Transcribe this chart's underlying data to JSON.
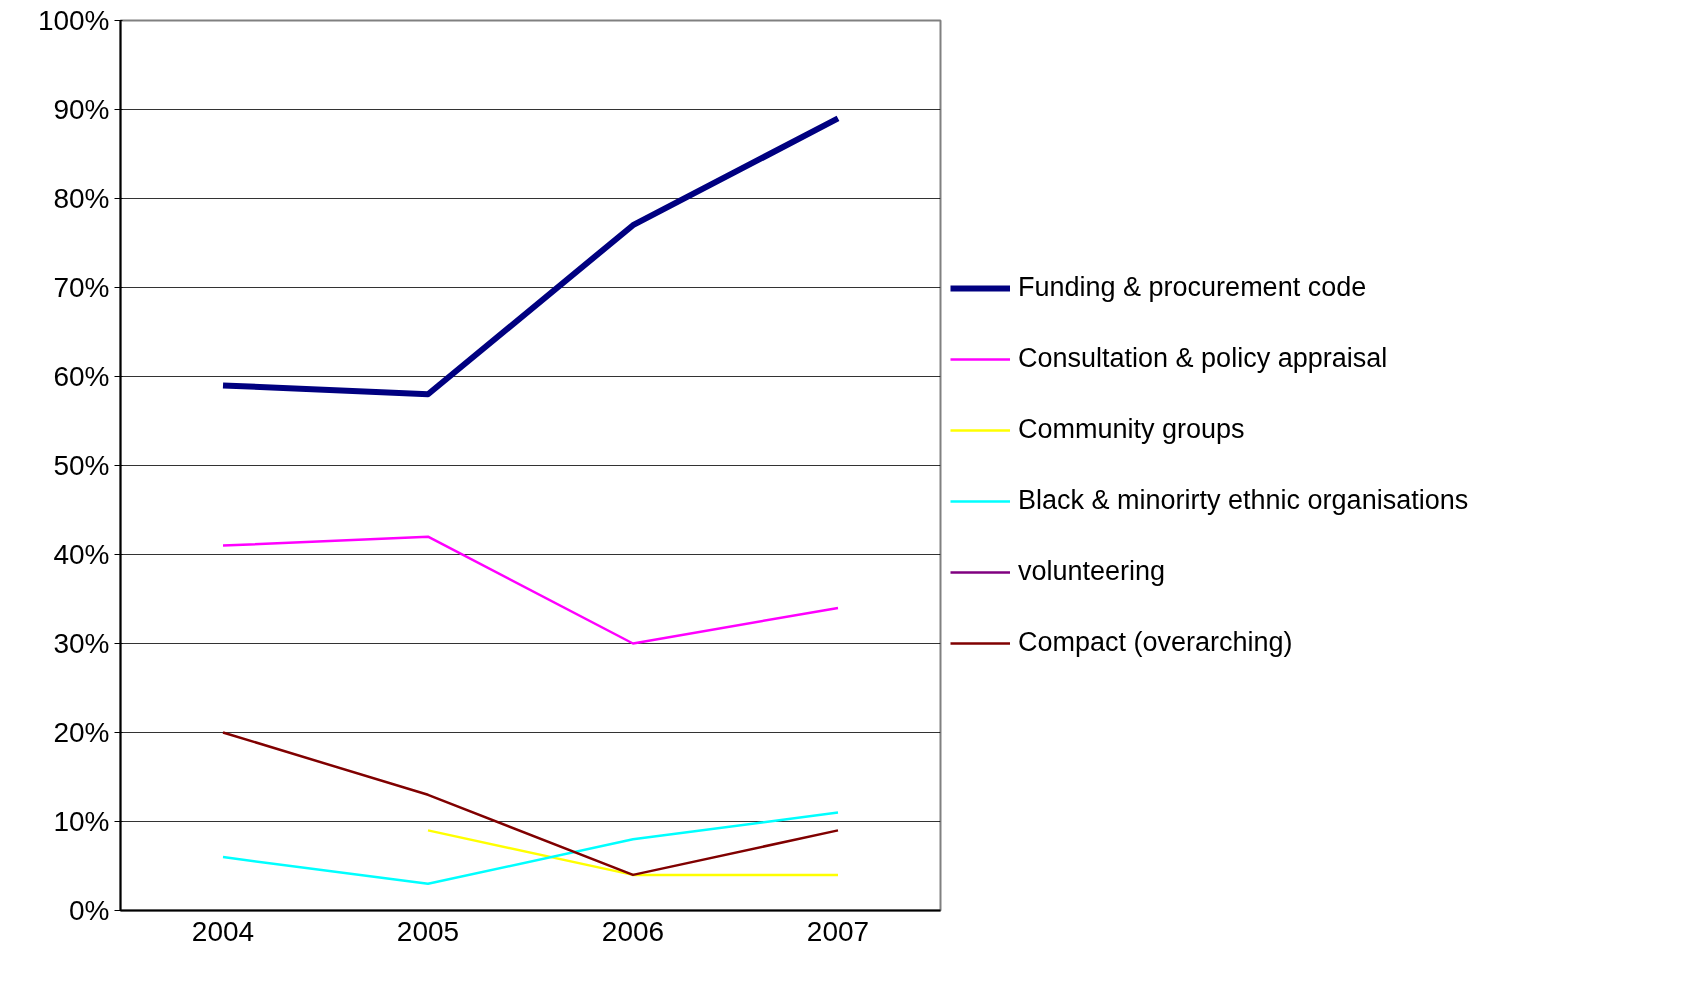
{
  "chart_data": {
    "type": "line",
    "categories": [
      "2004",
      "2005",
      "2006",
      "2007"
    ],
    "series": [
      {
        "name": "Funding & procurement code",
        "color": "#000080",
        "values": [
          59,
          58,
          77,
          89
        ]
      },
      {
        "name": "Consultation & policy appraisal",
        "color": "#ff00ff",
        "values": [
          41,
          42,
          30,
          34
        ]
      },
      {
        "name": "Community groups",
        "color": "#ffff00",
        "values": [
          null,
          9,
          4,
          4
        ]
      },
      {
        "name": "Black & minorirty ethnic organisations",
        "color": "#00ffff",
        "values": [
          6,
          3,
          8,
          11
        ]
      },
      {
        "name": "volunteering",
        "color": "#800080",
        "values": [
          null,
          null,
          null,
          null
        ]
      },
      {
        "name": "Compact (overarching)",
        "color": "#800000",
        "values": [
          20,
          13,
          4,
          9
        ]
      }
    ],
    "ylim": [
      0,
      100
    ],
    "yticks": [
      {
        "value": 0,
        "label": "0%"
      },
      {
        "value": 10,
        "label": "10%"
      },
      {
        "value": 20,
        "label": "20%"
      },
      {
        "value": 30,
        "label": "30%"
      },
      {
        "value": 40,
        "label": "40%"
      },
      {
        "value": 50,
        "label": "50%"
      },
      {
        "value": 60,
        "label": "60%"
      },
      {
        "value": 70,
        "label": "70%"
      },
      {
        "value": 80,
        "label": "80%"
      },
      {
        "value": 90,
        "label": "90%"
      },
      {
        "value": 100,
        "label": "100%"
      }
    ],
    "grid": "y",
    "legend": "right",
    "marker": "none",
    "line_style": "solid"
  }
}
